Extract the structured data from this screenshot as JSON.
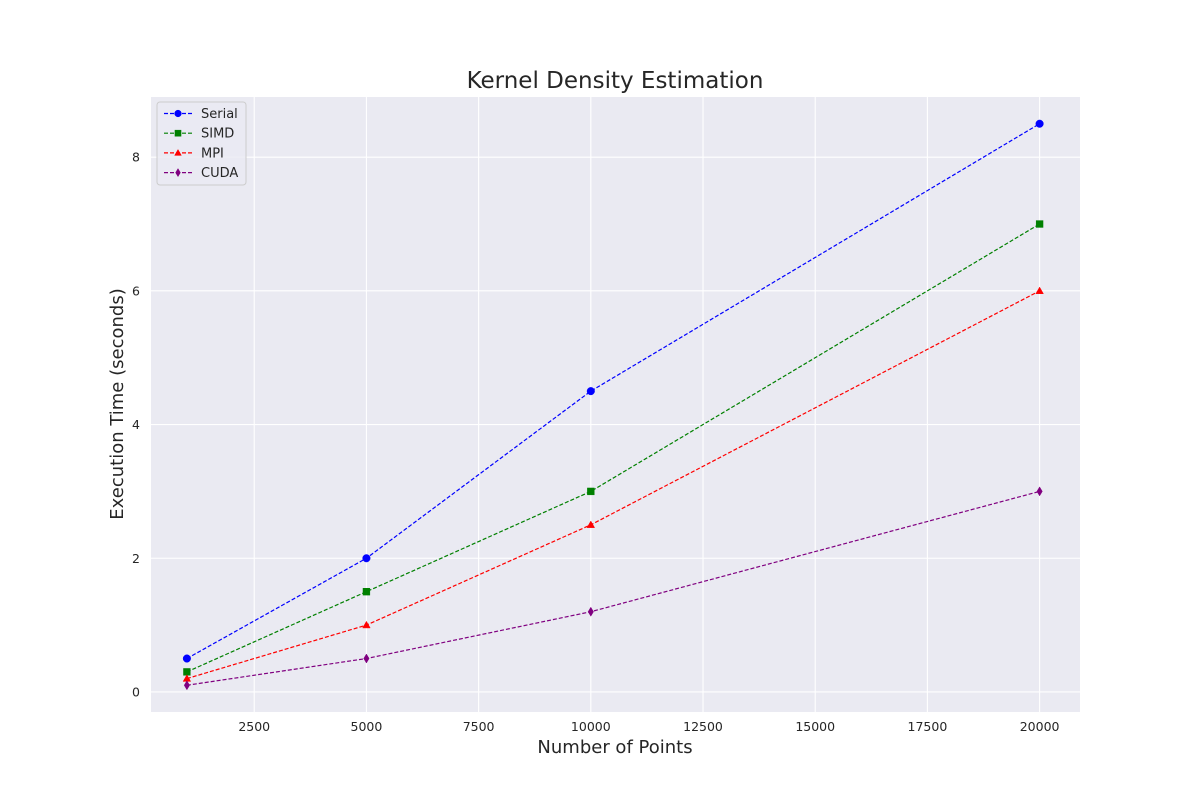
{
  "chart_data": {
    "type": "line",
    "title": "Kernel Density Estimation",
    "xlabel": "Number of Points",
    "ylabel": "Execution Time (seconds)",
    "x": [
      1000,
      5000,
      10000,
      20000
    ],
    "xlim": [
      200,
      20900
    ],
    "ylim": [
      -0.3,
      8.9
    ],
    "xticks": [
      2500,
      5000,
      7500,
      10000,
      12500,
      15000,
      17500,
      20000
    ],
    "yticks": [
      0,
      2,
      4,
      6,
      8
    ],
    "grid": true,
    "legend_position": "top-left",
    "background": "#eaeaf2",
    "series": [
      {
        "name": "Serial",
        "values": [
          0.5,
          2.0,
          4.5,
          8.5
        ],
        "color": "#0000ff",
        "marker": "circle"
      },
      {
        "name": "SIMD",
        "values": [
          0.3,
          1.5,
          3.0,
          7.0
        ],
        "color": "#008000",
        "marker": "square"
      },
      {
        "name": "MPI",
        "values": [
          0.2,
          1.0,
          2.5,
          6.0
        ],
        "color": "#ff0000",
        "marker": "triangle"
      },
      {
        "name": "CUDA",
        "values": [
          0.1,
          0.5,
          1.2,
          3.0
        ],
        "color": "#800080",
        "marker": "diamond"
      }
    ]
  }
}
